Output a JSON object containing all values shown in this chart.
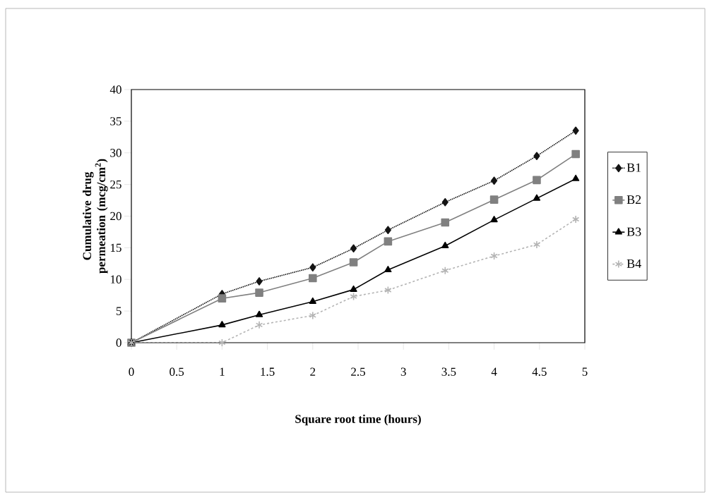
{
  "chart_data": {
    "type": "line",
    "xlabel": "Square  root time (hours)",
    "ylabel": "Cumulative drug permeation (mcg/cm$^{2}$)",
    "x": [
      0,
      1,
      1.41,
      2,
      2.45,
      2.83,
      3.46,
      4,
      4.47,
      4.9
    ],
    "xlim": [
      0,
      5
    ],
    "xticks": [
      0,
      0.5,
      1,
      1.5,
      2,
      2.5,
      3,
      3.5,
      4,
      4.5,
      5
    ],
    "ylim": [
      0,
      40
    ],
    "yticks": [
      0,
      5,
      10,
      15,
      20,
      25,
      30,
      35,
      40
    ],
    "grid": false,
    "legend": "right",
    "series": [
      {
        "name": "B1",
        "color": "#141414",
        "marker": "diamond",
        "line_style": "dotted",
        "values": [
          0,
          7.7,
          9.7,
          11.9,
          14.9,
          17.8,
          22.2,
          25.6,
          29.5,
          33.5
        ]
      },
      {
        "name": "B2",
        "color": "#808080",
        "marker": "square",
        "line_style": "solid",
        "values": [
          0,
          7.0,
          7.9,
          10.2,
          12.7,
          16.0,
          19.0,
          22.6,
          25.7,
          29.8
        ]
      },
      {
        "name": "B3",
        "color": "#000000",
        "marker": "triangle",
        "line_style": "solid",
        "values": [
          0,
          2.8,
          4.4,
          6.5,
          8.4,
          11.5,
          15.3,
          19.4,
          22.8,
          25.9
        ]
      },
      {
        "name": "B4",
        "color": "#b4b4b4",
        "marker": "cross",
        "line_style": "dashed",
        "values": [
          0,
          0,
          2.8,
          4.3,
          7.3,
          8.3,
          11.4,
          13.7,
          15.5,
          19.5
        ]
      }
    ]
  }
}
